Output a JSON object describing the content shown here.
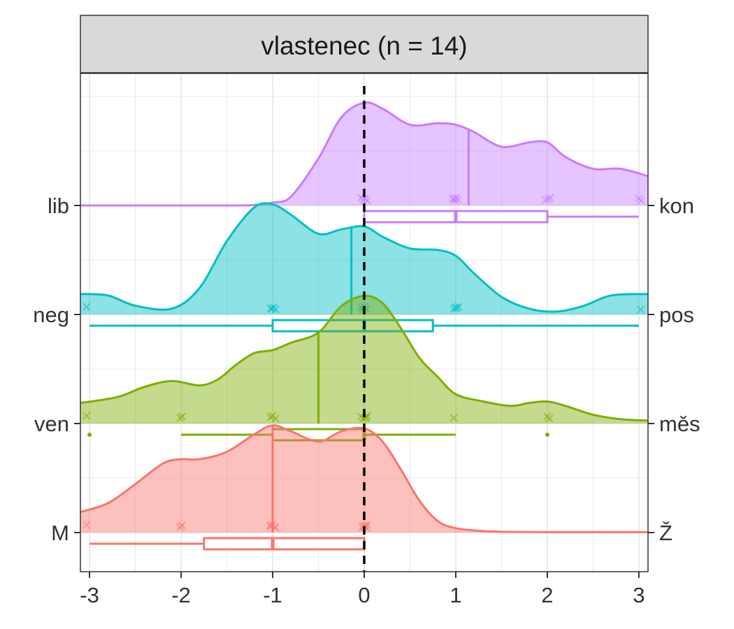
{
  "chart_data": {
    "type": "ridgeline",
    "title": "vlastenec (n = 14)",
    "xlabel": "",
    "ylabel": "",
    "xlim": [
      -3.1,
      3.1
    ],
    "x_ticks": [
      -3,
      -2,
      -1,
      0,
      1,
      2,
      3
    ],
    "grid": true,
    "reference_line_x": 0,
    "left_labels": [
      "M",
      "ven",
      "neg",
      "lib"
    ],
    "right_labels": [
      "Ž",
      "měs",
      "pos",
      "kon"
    ],
    "rows": [
      {
        "left": "M",
        "right": "Ž",
        "color": "#F8766D",
        "mean": -1.0,
        "density_x": [
          -3.1,
          -2.8,
          -2.5,
          -2.2,
          -2.0,
          -1.8,
          -1.5,
          -1.2,
          -1.0,
          -0.8,
          -0.5,
          -0.25,
          0.0,
          0.2,
          0.4,
          0.6,
          0.8,
          1.0,
          1.3,
          1.6,
          2.0,
          2.5,
          3.1
        ],
        "density_y": [
          0.14,
          0.2,
          0.33,
          0.47,
          0.5,
          0.5,
          0.55,
          0.67,
          0.73,
          0.69,
          0.62,
          0.69,
          0.71,
          0.62,
          0.43,
          0.22,
          0.08,
          0.03,
          0.01,
          0.005,
          0.003,
          0.003,
          0.003
        ],
        "points": [
          -3,
          -2,
          -2,
          -1,
          -1,
          -1,
          -1,
          -1,
          0,
          0,
          0,
          0,
          0,
          0
        ],
        "boxplot": {
          "whisker_low": -3,
          "q1": -1.75,
          "median": -1,
          "q3": 0,
          "whisker_high": 0,
          "outliers": []
        }
      },
      {
        "left": "ven",
        "right": "měs",
        "color": "#7CAE00",
        "mean": -0.5,
        "density_x": [
          -3.1,
          -2.7,
          -2.4,
          -2.1,
          -1.8,
          -1.6,
          -1.4,
          -1.2,
          -1.0,
          -0.8,
          -0.5,
          -0.25,
          0.0,
          0.2,
          0.4,
          0.6,
          0.8,
          1.0,
          1.3,
          1.6,
          1.8,
          2.0,
          2.2,
          2.5,
          2.8,
          3.1
        ],
        "density_y": [
          0.14,
          0.18,
          0.25,
          0.29,
          0.26,
          0.3,
          0.4,
          0.48,
          0.5,
          0.55,
          0.62,
          0.8,
          0.87,
          0.82,
          0.65,
          0.45,
          0.32,
          0.2,
          0.15,
          0.12,
          0.14,
          0.15,
          0.12,
          0.06,
          0.03,
          0.02
        ],
        "points": [
          -3,
          -2,
          -2,
          -1,
          -1,
          -1,
          0,
          0,
          0,
          0,
          0,
          1,
          2,
          2
        ],
        "boxplot": {
          "whisker_low": -2,
          "q1": -1,
          "median": 0,
          "q3": 0,
          "whisker_high": 1,
          "outliers": [
            -3,
            2
          ]
        }
      },
      {
        "left": "neg",
        "right": "pos",
        "color": "#00BFC4",
        "mean": -0.14,
        "density_x": [
          -3.1,
          -2.8,
          -2.5,
          -2.1,
          -1.8,
          -1.5,
          -1.2,
          -1.0,
          -0.8,
          -0.5,
          -0.25,
          0.0,
          0.2,
          0.5,
          0.8,
          1.0,
          1.2,
          1.5,
          1.8,
          2.1,
          2.4,
          2.7,
          3.1
        ],
        "density_y": [
          0.14,
          0.13,
          0.06,
          0.04,
          0.18,
          0.5,
          0.73,
          0.75,
          0.68,
          0.55,
          0.58,
          0.6,
          0.53,
          0.45,
          0.44,
          0.4,
          0.28,
          0.12,
          0.04,
          0.02,
          0.06,
          0.13,
          0.14
        ],
        "points": [
          -3,
          -1,
          -1,
          -1,
          -1,
          0,
          0,
          0,
          0,
          1,
          1,
          1,
          1,
          3
        ],
        "boxplot": {
          "whisker_low": -3,
          "q1": -1,
          "median": 0,
          "q3": 0.75,
          "whisker_high": 3,
          "outliers": []
        }
      },
      {
        "left": "lib",
        "right": "kon",
        "color": "#C77CFF",
        "mean": 1.14,
        "density_x": [
          -3.1,
          -1.5,
          -1.2,
          -1.0,
          -0.8,
          -0.5,
          -0.25,
          0.0,
          0.2,
          0.5,
          0.8,
          1.0,
          1.2,
          1.5,
          1.8,
          2.0,
          2.2,
          2.5,
          2.8,
          3.1
        ],
        "density_y": [
          0.0,
          0.0,
          0.004,
          0.02,
          0.06,
          0.32,
          0.6,
          0.7,
          0.66,
          0.55,
          0.56,
          0.55,
          0.5,
          0.4,
          0.43,
          0.43,
          0.33,
          0.25,
          0.25,
          0.2
        ],
        "points": [
          0,
          0,
          0,
          0,
          1,
          1,
          1,
          1,
          1,
          2,
          2,
          2,
          3,
          3
        ],
        "boxplot": {
          "whisker_low": 0,
          "q1": 0,
          "median": 1,
          "q3": 2,
          "whisker_high": 3,
          "outliers": []
        }
      }
    ]
  }
}
